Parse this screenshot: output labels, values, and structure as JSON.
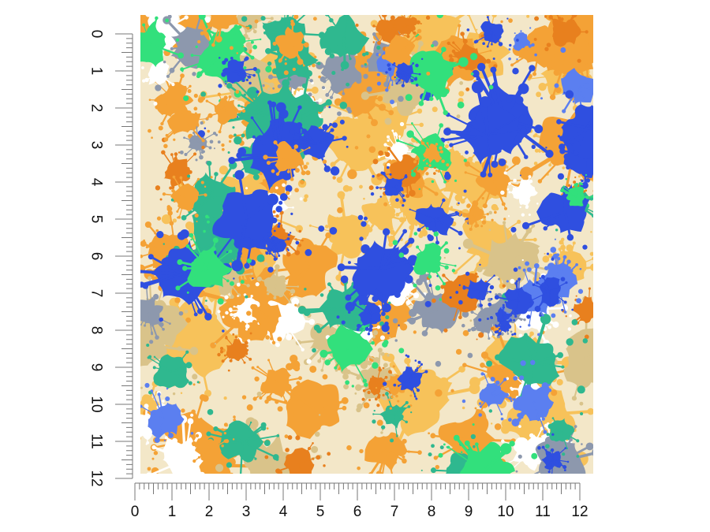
{
  "product_image": {
    "pattern_name": "paint-splatter",
    "palette": {
      "white": "#ffffff",
      "orange": "#f4a236",
      "light_orange": "#f7c25a",
      "deep_orange": "#e8801e",
      "tan": "#d9c38a",
      "blue": "#2f4fe0",
      "light_blue": "#5b7ff0",
      "green": "#32e07c",
      "teal": "#2fb88f",
      "steel": "#8d98ad"
    }
  },
  "ruler_vertical": {
    "labels": [
      "0",
      "1",
      "2",
      "3",
      "4",
      "5",
      "6",
      "7",
      "8",
      "9",
      "10",
      "11",
      "12"
    ]
  },
  "ruler_horizontal": {
    "labels": [
      "0",
      "1",
      "2",
      "3",
      "4",
      "5",
      "6",
      "7",
      "8",
      "9",
      "10",
      "11",
      "12"
    ]
  }
}
